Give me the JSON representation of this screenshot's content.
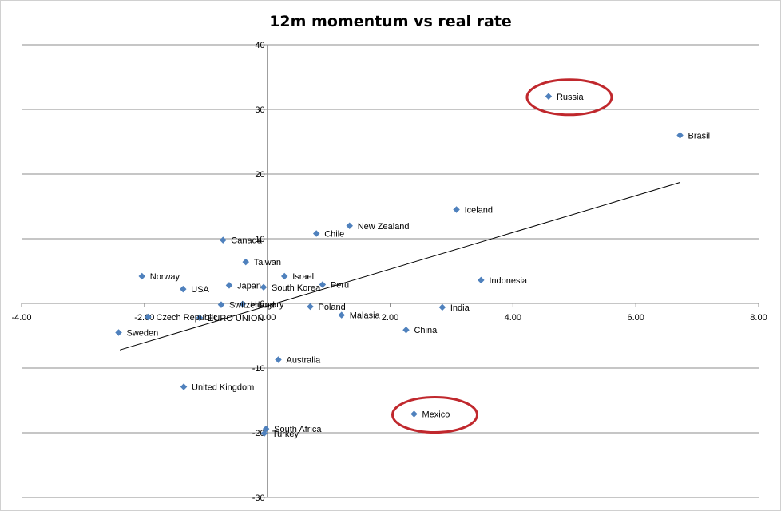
{
  "chart_data": {
    "type": "scatter",
    "title": "12m momentum vs real rate",
    "xlabel": "",
    "ylabel": "",
    "xlim": [
      -4,
      8
    ],
    "ylim": [
      -30,
      40
    ],
    "x_ticks": [
      "-4.00",
      "-2.00",
      "0.00",
      "2.00",
      "4.00",
      "6.00",
      "8.00"
    ],
    "y_ticks": [
      "40",
      "30",
      "20",
      "10",
      "0",
      "-10",
      "-20",
      "-30"
    ],
    "grid": "horizontal",
    "legend": "none",
    "marker_color": "#4f81bd",
    "trendline_color": "#000000",
    "highlight_color": "#c0282d",
    "trendline": {
      "x": [
        -2.4,
        6.72
      ],
      "y": [
        -7.2,
        18.7
      ]
    },
    "points": [
      {
        "label": "Russia",
        "x": 4.58,
        "y": 32.0,
        "highlight": true
      },
      {
        "label": "Brasil",
        "x": 6.72,
        "y": 26.0
      },
      {
        "label": "Iceland",
        "x": 3.08,
        "y": 14.5
      },
      {
        "label": "New Zealand",
        "x": 1.34,
        "y": 12.0
      },
      {
        "label": "Chile",
        "x": 0.8,
        "y": 10.8
      },
      {
        "label": "Canada",
        "x": -0.72,
        "y": 9.8
      },
      {
        "label": "Taiwan",
        "x": -0.35,
        "y": 6.4
      },
      {
        "label": "Norway",
        "x": -2.04,
        "y": 4.2
      },
      {
        "label": "Israel",
        "x": 0.28,
        "y": 4.2
      },
      {
        "label": "Indonesia",
        "x": 3.48,
        "y": 3.6
      },
      {
        "label": "Peru",
        "x": 0.9,
        "y": 2.9
      },
      {
        "label": "Japan",
        "x": -0.62,
        "y": 2.8
      },
      {
        "label": "South Korea",
        "x": -0.06,
        "y": 2.5
      },
      {
        "label": "USA",
        "x": -1.37,
        "y": 2.2
      },
      {
        "label": "Switzerland",
        "x": -0.75,
        "y": -0.2
      },
      {
        "label": "Hungary",
        "x": -0.4,
        "y": -0.1
      },
      {
        "label": "Poland",
        "x": 0.7,
        "y": -0.5
      },
      {
        "label": "India",
        "x": 2.85,
        "y": -0.6
      },
      {
        "label": "Czech Republic",
        "x": -1.94,
        "y": -2.1
      },
      {
        "label": "EURO UNION",
        "x": -1.1,
        "y": -2.2
      },
      {
        "label": "Malasia",
        "x": 1.21,
        "y": -1.8
      },
      {
        "label": "Sweden",
        "x": -2.42,
        "y": -4.5
      },
      {
        "label": "China",
        "x": 2.26,
        "y": -4.1
      },
      {
        "label": "Australia",
        "x": 0.18,
        "y": -8.7
      },
      {
        "label": "United Kingdom",
        "x": -1.36,
        "y": -12.9
      },
      {
        "label": "Mexico",
        "x": 2.39,
        "y": -17.1,
        "highlight": true
      },
      {
        "label": "South Africa",
        "x": -0.02,
        "y": -19.4
      },
      {
        "label": "Turkey",
        "x": -0.05,
        "y": -20.1
      }
    ]
  }
}
